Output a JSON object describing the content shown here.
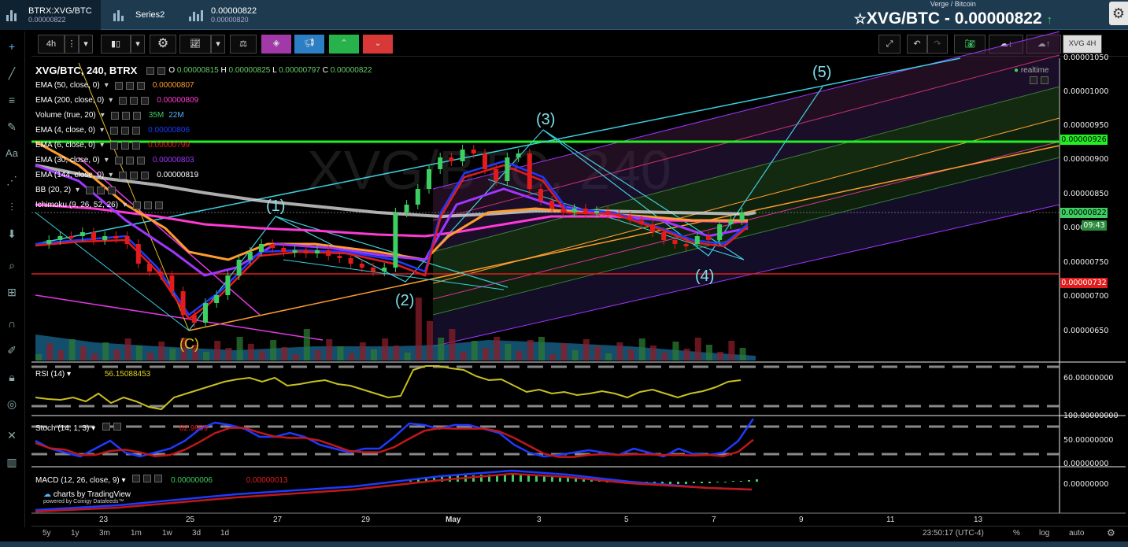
{
  "tabs": [
    {
      "title": "BTRX:XVG/BTC",
      "value": "0.00000822"
    },
    {
      "title": "Series2",
      "value": ""
    },
    {
      "title": "0.00000822",
      "value": "0.00000820"
    }
  ],
  "header": {
    "subtitle": "Verge / Bitcoin",
    "pair_label": "XVG/BTC - 0.00000822",
    "change_arrow": "↑"
  },
  "toolbar": {
    "interval": "4h",
    "symbol_code": "XVG 4H"
  },
  "legend": {
    "title": "XVG/BTC, 240, BTRX",
    "ohlc": {
      "o": "0.00000815",
      "h": "0.00000825",
      "l": "0.00000797",
      "c": "0.00000822"
    },
    "realtime": "realtime",
    "indicators": [
      {
        "name": "EMA (50, close, 0)",
        "values": [
          "0.00000807"
        ],
        "colors": [
          "#ff9b2f"
        ]
      },
      {
        "name": "EMA (200, close, 0)",
        "values": [
          "0.00000809"
        ],
        "colors": [
          "#ff3ad6"
        ]
      },
      {
        "name": "Volume (true, 20)",
        "values": [
          "35M",
          "22M"
        ],
        "colors": [
          "#3ecf63",
          "#4fb3ff"
        ]
      },
      {
        "name": "EMA (4, close, 0)",
        "values": [
          "0.00000806"
        ],
        "colors": [
          "#1e3aff"
        ]
      },
      {
        "name": "EMA (6, close, 0)",
        "values": [
          "0.00000799"
        ],
        "colors": [
          "#e21c1c"
        ]
      },
      {
        "name": "EMA (30, close, 0)",
        "values": [
          "0.00000803"
        ],
        "colors": [
          "#a035ff"
        ]
      },
      {
        "name": "EMA (144, close, 0)",
        "values": [
          "0.00000819"
        ],
        "colors": [
          "#ffffff"
        ]
      },
      {
        "name": "BB (20, 2)",
        "values": [],
        "colors": []
      },
      {
        "name": "Ichimoku (9, 26, 52, 26)",
        "values": [],
        "colors": []
      }
    ]
  },
  "price_axis": [
    "0.00001050",
    "0.00001000",
    "0.00000950",
    "0.00000900",
    "0.00000850",
    "0.0000",
    "0.00000750",
    "0.00000700",
    "0.00000650"
  ],
  "price_tags": {
    "resistance": "0.00000926",
    "last": "0.00000822",
    "timer": "09:43",
    "support": "0.00000732"
  },
  "wave_labels": [
    "(1)",
    "(2)",
    "(3)",
    "(4)",
    "(5)",
    "(C)"
  ],
  "panes": {
    "rsi": {
      "label": "RSI (14)",
      "value": "56.15088453",
      "axis": "60.00000000"
    },
    "stoch": {
      "label": "Stoch (14, 1, 3)",
      "value": "82.9999",
      "axis": [
        "100.00000000",
        "50.00000000",
        "0.00000000"
      ]
    },
    "macd": {
      "label": "MACD (12, 26, close, 9)",
      "value1": "0.00000006",
      "value2": "0.00000013",
      "axis": "0.00000000"
    }
  },
  "time_axis": [
    "23",
    "25",
    "27",
    "29",
    "May",
    "3",
    "5",
    "7",
    "9",
    "11",
    "13"
  ],
  "ranges": [
    "5y",
    "1y",
    "3m",
    "1m",
    "1w",
    "3d",
    "1d"
  ],
  "status": {
    "clock": "23:50:17 (UTC-4)",
    "percent": "%",
    "log": "log",
    "auto": "auto"
  },
  "watermark": {
    "line1": "charts by TradingView",
    "line2": "powered by Coinigy Datafeeds™"
  },
  "bg_watermark": "XVG/BTC, 240"
}
